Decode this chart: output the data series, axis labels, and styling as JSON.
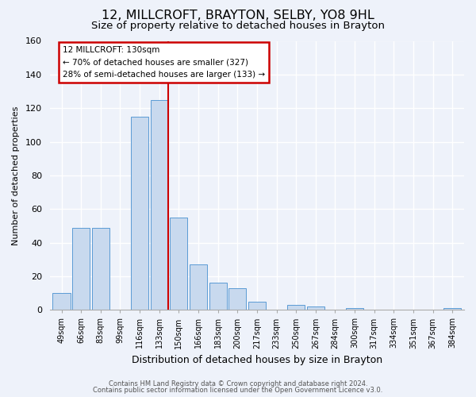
{
  "title": "12, MILLCROFT, BRAYTON, SELBY, YO8 9HL",
  "subtitle": "Size of property relative to detached houses in Brayton",
  "xlabel": "Distribution of detached houses by size in Brayton",
  "ylabel": "Number of detached properties",
  "bar_labels": [
    "49sqm",
    "66sqm",
    "83sqm",
    "99sqm",
    "116sqm",
    "133sqm",
    "150sqm",
    "166sqm",
    "183sqm",
    "200sqm",
    "217sqm",
    "233sqm",
    "250sqm",
    "267sqm",
    "284sqm",
    "300sqm",
    "317sqm",
    "334sqm",
    "351sqm",
    "367sqm",
    "384sqm"
  ],
  "bar_heights": [
    10,
    49,
    49,
    0,
    115,
    125,
    55,
    27,
    16,
    13,
    5,
    0,
    3,
    2,
    0,
    1,
    0,
    0,
    0,
    0,
    1
  ],
  "bar_color": "#c8d9ee",
  "bar_edge_color": "#5b9bd5",
  "annotation_title": "12 MILLCROFT: 130sqm",
  "annotation_line1": "← 70% of detached houses are smaller (327)",
  "annotation_line2": "28% of semi-detached houses are larger (133) →",
  "annotation_box_color": "#ffffff",
  "annotation_box_edge": "#cc0000",
  "vline_color": "#cc0000",
  "footer1": "Contains HM Land Registry data © Crown copyright and database right 2024.",
  "footer2": "Contains public sector information licensed under the Open Government Licence v3.0.",
  "ylim": [
    0,
    160
  ],
  "yticks": [
    0,
    20,
    40,
    60,
    80,
    100,
    120,
    140,
    160
  ],
  "bg_color": "#eef2fa",
  "title_fontsize": 11.5,
  "subtitle_fontsize": 9.5,
  "vline_bin_index": 5
}
